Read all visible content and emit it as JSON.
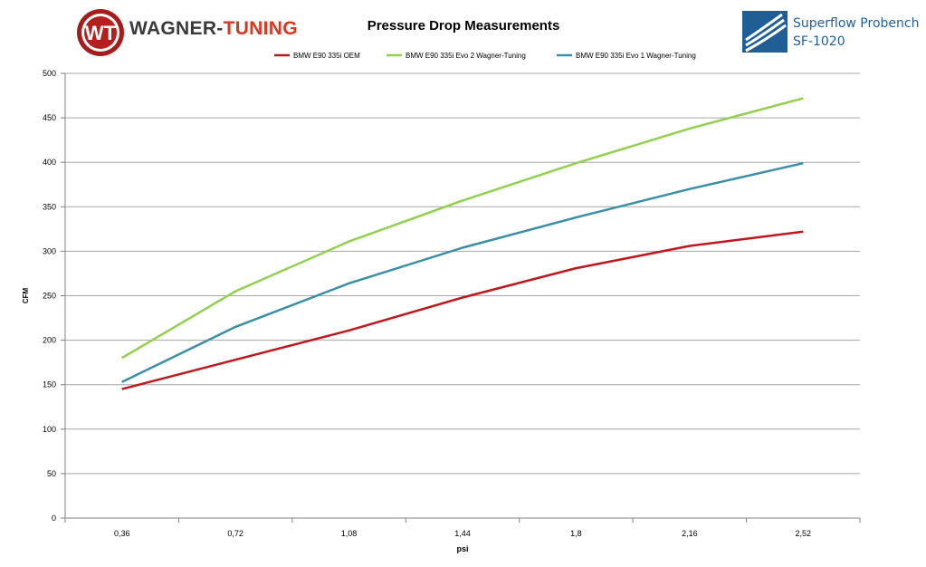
{
  "logos": {
    "left_part1": "WAGNER-",
    "left_part2": "TUNING",
    "right_line1": "Superflow Probench",
    "right_line2": "SF-1020"
  },
  "colors": {
    "oem": "#c0161c",
    "evo2": "#92d050",
    "evo1": "#3a8fa6",
    "wt_red": "#b51f1f",
    "sf_blue": "#1f5f96"
  },
  "chart_data": {
    "type": "line",
    "title": "Pressure Drop Measurements",
    "xlabel": "psi",
    "ylabel": "CFM",
    "categories": [
      "0,36",
      "0,72",
      "1,08",
      "1,44",
      "1,8",
      "2,16",
      "2,52"
    ],
    "ylim": [
      0,
      500
    ],
    "yticks": [
      "0",
      "50",
      "100",
      "150",
      "200",
      "250",
      "300",
      "350",
      "400",
      "450",
      "500"
    ],
    "grid": true,
    "legend_position": "top",
    "series": [
      {
        "name": "BMW E90 335i OEM",
        "color": "#c0161c",
        "values": [
          145,
          178,
          211,
          248,
          281,
          306,
          322
        ]
      },
      {
        "name": "BMW E90 335i Evo 2 Wagner-Tuning",
        "color": "#92d050",
        "values": [
          180,
          255,
          311,
          357,
          399,
          438,
          472
        ]
      },
      {
        "name": "BMW E90 335i Evo 1 Wagner-Tuning",
        "color": "#3a8fa6",
        "values": [
          153,
          215,
          264,
          304,
          338,
          370,
          399
        ]
      }
    ]
  }
}
